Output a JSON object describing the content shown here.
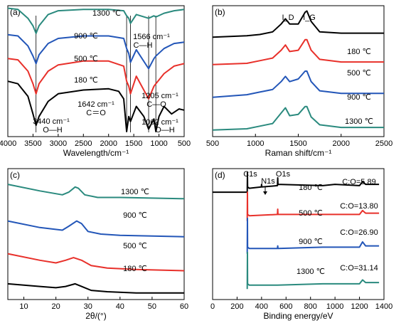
{
  "chart_data": [
    {
      "panel": "(a)",
      "type": "line",
      "subtype": "FTIR spectra (stacked, offset)",
      "xlabel": "Wavelength/cm⁻¹",
      "xlim": [
        4000,
        500
      ],
      "xticks": [
        4000,
        3500,
        3000,
        2500,
        2000,
        1500,
        1000,
        500
      ],
      "colors": {
        "180 ℃": "#000000",
        "500 ℃": "#e8302a",
        "900 ℃": "#2356b8",
        "1300 ℃": "#2a8a7e"
      },
      "series": [
        {
          "name": "1300 ℃",
          "x": [
            4000,
            3800,
            3600,
            3500,
            3440,
            3380,
            3200,
            3000,
            2500,
            2000,
            1700,
            1642,
            1600,
            1566,
            1450,
            1205,
            1100,
            1062,
            900,
            700,
            500
          ],
          "y": [
            0.98,
            0.97,
            0.9,
            0.84,
            0.78,
            0.84,
            0.93,
            0.96,
            0.97,
            0.97,
            0.96,
            0.92,
            0.9,
            0.86,
            0.93,
            0.9,
            0.92,
            0.91,
            0.94,
            0.96,
            0.97
          ]
        },
        {
          "name": "900 ℃",
          "x": [
            4000,
            3800,
            3600,
            3500,
            3440,
            3380,
            3200,
            3000,
            2500,
            2000,
            1700,
            1642,
            1600,
            1566,
            1450,
            1205,
            1100,
            1062,
            900,
            700,
            500
          ],
          "y": [
            0.77,
            0.76,
            0.68,
            0.6,
            0.54,
            0.61,
            0.7,
            0.74,
            0.76,
            0.76,
            0.74,
            0.66,
            0.62,
            0.55,
            0.65,
            0.5,
            0.58,
            0.6,
            0.66,
            0.7,
            0.71
          ]
        },
        {
          "name": "500 ℃",
          "x": [
            4000,
            3800,
            3600,
            3500,
            3440,
            3380,
            3200,
            3000,
            2500,
            2000,
            1700,
            1642,
            1600,
            1566,
            1450,
            1205,
            1100,
            1062,
            900,
            700,
            500
          ],
          "y": [
            0.58,
            0.57,
            0.48,
            0.38,
            0.3,
            0.38,
            0.48,
            0.53,
            0.56,
            0.56,
            0.52,
            0.4,
            0.36,
            0.3,
            0.44,
            0.26,
            0.36,
            0.38,
            0.46,
            0.52,
            0.54
          ]
        },
        {
          "name": "180 ℃",
          "x": [
            4000,
            3800,
            3600,
            3500,
            3440,
            3380,
            3200,
            3000,
            2500,
            2000,
            1800,
            1700,
            1642,
            1600,
            1566,
            1450,
            1300,
            1205,
            1100,
            1062,
            1000,
            900,
            750,
            600,
            500
          ],
          "y": [
            0.4,
            0.38,
            0.28,
            0.14,
            0.05,
            0.12,
            0.24,
            0.3,
            0.33,
            0.34,
            0.32,
            0.26,
            0.0,
            0.12,
            0.08,
            0.2,
            0.12,
            0.02,
            0.1,
            0.0,
            0.12,
            0.2,
            0.14,
            0.18,
            0.17
          ]
        }
      ],
      "annotations": [
        {
          "text": "1300 ℃"
        },
        {
          "text": "900 ℃"
        },
        {
          "text": "500 ℃"
        },
        {
          "text": "180 ℃"
        },
        {
          "text": "1566 cm⁻¹"
        },
        {
          "text": "C—H"
        },
        {
          "text": "1205 cm⁻¹"
        },
        {
          "text": "C—O"
        },
        {
          "text": "1642 cm⁻¹"
        },
        {
          "text": "C＝O"
        },
        {
          "text": "3440 cm⁻¹"
        },
        {
          "text": "O—H"
        },
        {
          "text": "1062 cm⁻¹"
        },
        {
          "text": "O—H"
        }
      ],
      "marker_lines": [
        3440,
        1642,
        1566,
        1205,
        1062
      ]
    },
    {
      "panel": "(b)",
      "type": "line",
      "subtype": "Raman spectra (stacked, offset)",
      "xlabel": "Raman shift/cm⁻¹",
      "xlim": [
        500,
        2500
      ],
      "xticks": [
        500,
        1000,
        1500,
        2000,
        2500
      ],
      "peak_labels": [
        "I_D",
        "I_G"
      ],
      "series": [
        {
          "name": "180 ℃",
          "x": [
            500,
            900,
            1050,
            1200,
            1300,
            1350,
            1400,
            1500,
            1580,
            1600,
            1650,
            1750,
            2000,
            2500
          ],
          "y": [
            0.76,
            0.77,
            0.78,
            0.8,
            0.86,
            0.9,
            0.86,
            0.86,
            0.95,
            0.96,
            0.88,
            0.8,
            0.79,
            0.79
          ]
        },
        {
          "name": "500 ℃",
          "x": [
            500,
            900,
            1050,
            1200,
            1300,
            1350,
            1400,
            1500,
            1580,
            1600,
            1650,
            1750,
            2000,
            2500
          ],
          "y": [
            0.55,
            0.56,
            0.58,
            0.6,
            0.66,
            0.7,
            0.65,
            0.66,
            0.74,
            0.74,
            0.66,
            0.59,
            0.57,
            0.57
          ]
        },
        {
          "name": "900 ℃",
          "x": [
            500,
            900,
            1050,
            1200,
            1300,
            1350,
            1400,
            1500,
            1580,
            1600,
            1650,
            1750,
            2000,
            2500
          ],
          "y": [
            0.3,
            0.32,
            0.34,
            0.36,
            0.42,
            0.46,
            0.42,
            0.44,
            0.5,
            0.5,
            0.42,
            0.35,
            0.33,
            0.33
          ]
        },
        {
          "name": "1300 ℃",
          "x": [
            500,
            900,
            1050,
            1200,
            1300,
            1350,
            1400,
            1500,
            1580,
            1600,
            1650,
            1750,
            2000,
            2500
          ],
          "y": [
            0.05,
            0.06,
            0.08,
            0.1,
            0.18,
            0.22,
            0.16,
            0.17,
            0.23,
            0.23,
            0.15,
            0.09,
            0.07,
            0.07
          ]
        }
      ]
    },
    {
      "panel": "(c)",
      "type": "line",
      "subtype": "XRD patterns (stacked, offset)",
      "xlabel": "2θ/(°)",
      "xlim": [
        5,
        60
      ],
      "xticks": [
        10,
        20,
        30,
        40,
        50,
        60
      ],
      "series": [
        {
          "name": "1300 ℃",
          "x": [
            5,
            15,
            22,
            24,
            26,
            27,
            29,
            33,
            40,
            60
          ],
          "y": [
            0.88,
            0.83,
            0.8,
            0.82,
            0.86,
            0.85,
            0.8,
            0.78,
            0.78,
            0.77
          ]
        },
        {
          "name": "900 ℃",
          "x": [
            5,
            15,
            22,
            24,
            26.5,
            28,
            30,
            34,
            40,
            60
          ],
          "y": [
            0.6,
            0.55,
            0.53,
            0.56,
            0.6,
            0.58,
            0.52,
            0.5,
            0.49,
            0.48
          ]
        },
        {
          "name": "500 ℃",
          "x": [
            5,
            15,
            20,
            23,
            25.5,
            28,
            31,
            36,
            45,
            60
          ],
          "y": [
            0.35,
            0.3,
            0.28,
            0.3,
            0.32,
            0.3,
            0.26,
            0.24,
            0.23,
            0.22
          ]
        },
        {
          "name": "180 ℃",
          "x": [
            5,
            15,
            20,
            23,
            26,
            28,
            31,
            36,
            45,
            60
          ],
          "y": [
            0.12,
            0.1,
            0.09,
            0.1,
            0.12,
            0.1,
            0.07,
            0.06,
            0.05,
            0.05
          ]
        }
      ]
    },
    {
      "panel": "(d)",
      "type": "line",
      "subtype": "XPS survey spectra (stacked, offset)",
      "xlabel": "Binding energy/eV",
      "xlim": [
        0,
        1400
      ],
      "xticks": [
        0,
        200,
        400,
        600,
        800,
        1000,
        1200,
        1400
      ],
      "peak_labels": [
        "C1s",
        "N1s",
        "O1s"
      ],
      "series": [
        {
          "name": "180 ℃",
          "x": [
            0,
            283,
            284.5,
            286,
            300,
            398,
            400,
            402,
            530,
            532,
            534,
            900,
            1000,
            1200,
            1225,
            1250,
            1360
          ],
          "y": [
            0.82,
            0.82,
            0.97,
            0.86,
            0.85,
            0.86,
            0.88,
            0.86,
            0.87,
            0.93,
            0.88,
            0.87,
            0.88,
            0.87,
            0.9,
            0.88,
            0.88
          ],
          "ratio_label": "C:O=5.89"
        },
        {
          "name": "500 ℃",
          "x": [
            283,
            284.5,
            286,
            300,
            530,
            532,
            534,
            900,
            1200,
            1225,
            1250,
            1360
          ],
          "y": [
            0.6,
            0.82,
            0.65,
            0.64,
            0.65,
            0.69,
            0.65,
            0.65,
            0.65,
            0.68,
            0.66,
            0.66
          ],
          "ratio_label": "C:O=13.80"
        },
        {
          "name": "900 ℃",
          "x": [
            283,
            284.5,
            286,
            300,
            530,
            532,
            534,
            900,
            1200,
            1225,
            1250,
            1360
          ],
          "y": [
            0.35,
            0.62,
            0.4,
            0.39,
            0.39,
            0.41,
            0.39,
            0.4,
            0.4,
            0.44,
            0.41,
            0.41
          ],
          "ratio_label": "C:O=26.90"
        },
        {
          "name": "1300 ℃",
          "x": [
            283,
            284.5,
            286,
            300,
            530,
            900,
            1200,
            1225,
            1250,
            1360
          ],
          "y": [
            0.08,
            0.36,
            0.12,
            0.11,
            0.11,
            0.12,
            0.12,
            0.15,
            0.13,
            0.13
          ],
          "ratio_label": "C:O=31.14"
        }
      ]
    }
  ],
  "panels": {
    "a": {
      "label": "(a)"
    },
    "b": {
      "label": "(b)"
    },
    "c": {
      "label": "(c)"
    },
    "d": {
      "label": "(d)"
    }
  }
}
